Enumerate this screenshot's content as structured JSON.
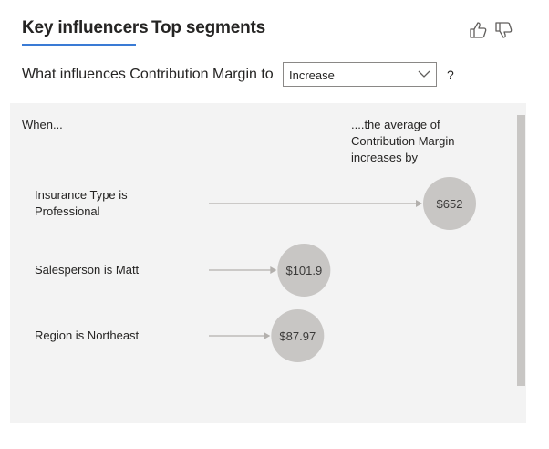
{
  "tabs": [
    {
      "label": "Key influencers"
    },
    {
      "label": "Top segments"
    }
  ],
  "question": {
    "label": "What influences Contribution Margin to",
    "selected": "Increase",
    "help": "?"
  },
  "panel": {
    "col_when": "When...",
    "col_avg": "....the average of Contribution Margin increases by"
  },
  "chart_data": {
    "type": "bar",
    "title": "Key influencers",
    "measure": "Contribution Margin",
    "categories": [
      "Insurance Type is Professional",
      "Salesperson is Matt",
      "Region is Northeast"
    ],
    "values": [
      652,
      101.9,
      87.97
    ],
    "value_labels": [
      "$652",
      "$101.9",
      "$87.97"
    ],
    "xmax": 652
  },
  "colors": {
    "bubble": "#c8c6c4",
    "arrow": "#b3b0ad",
    "accent": "#3a7bd5"
  },
  "icons": [
    "thumbs-up-icon",
    "thumbs-down-icon",
    "chevron-down-icon"
  ]
}
